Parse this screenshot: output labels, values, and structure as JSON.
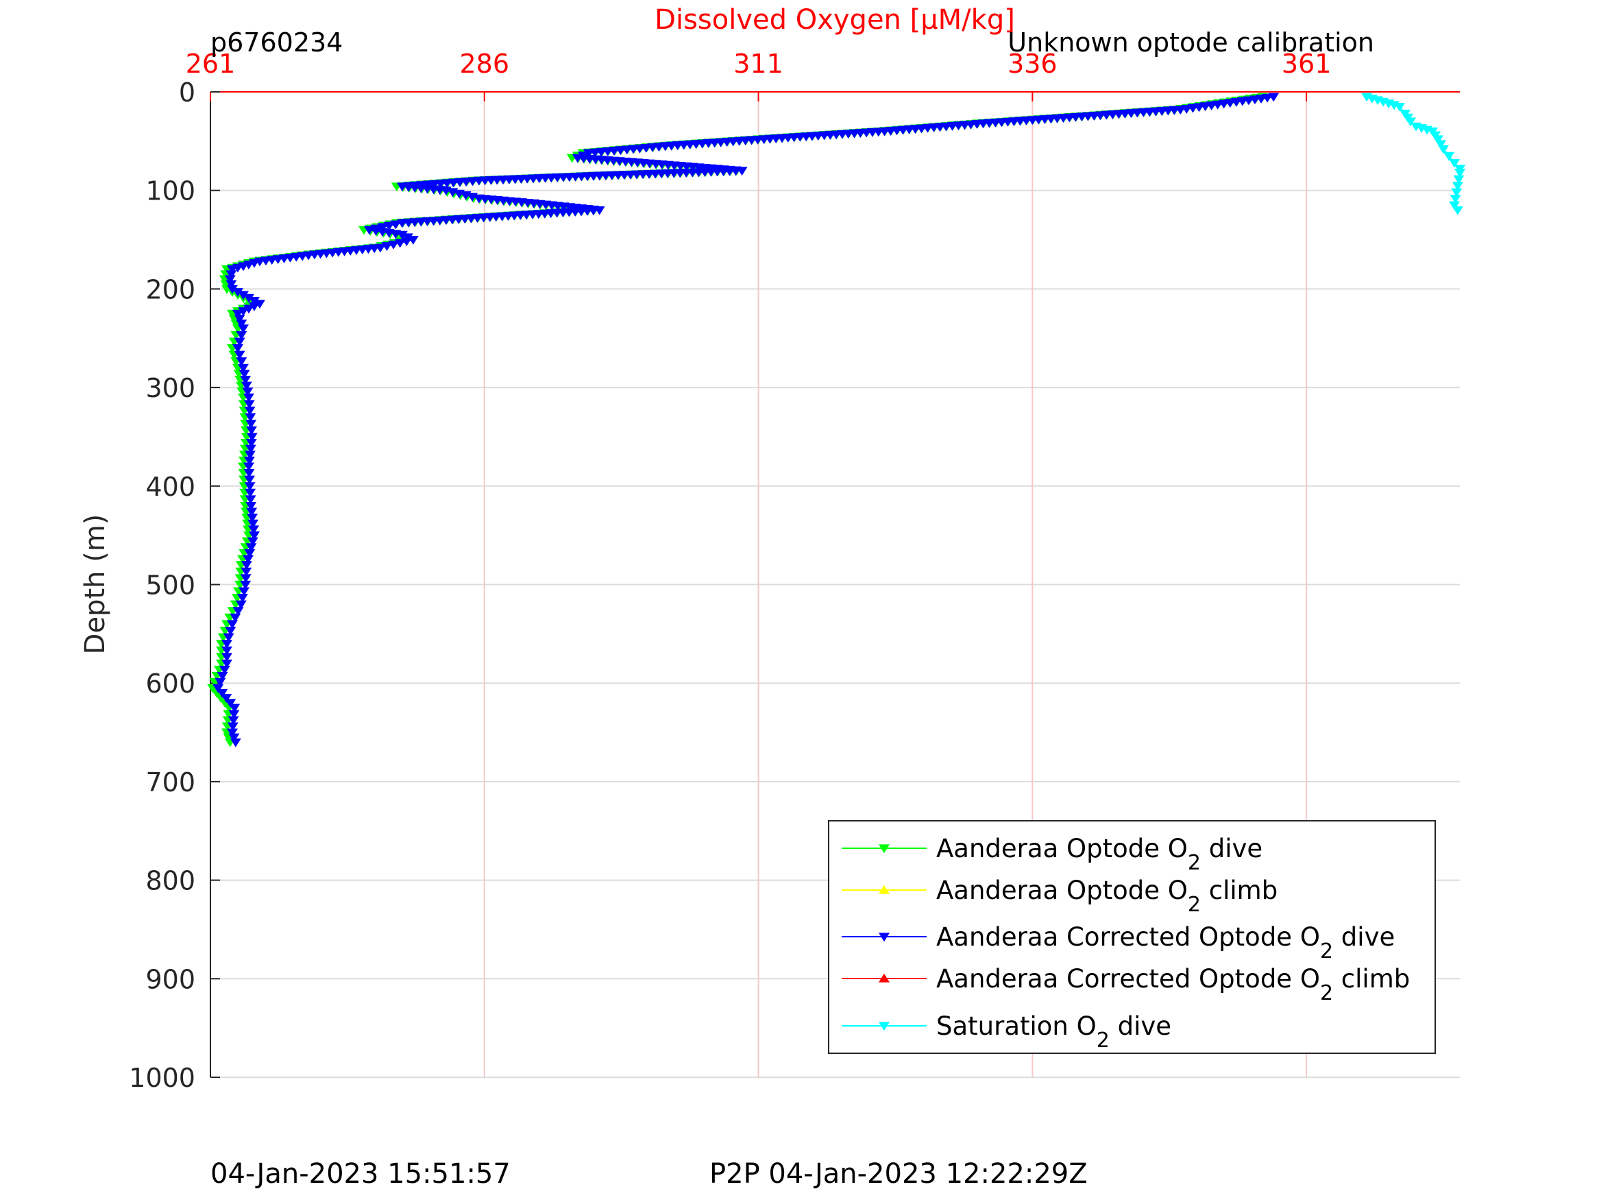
{
  "header": {
    "profile_id": "p6760234",
    "calibration_note": "Unknown optode calibration"
  },
  "footer": {
    "plot_time": "04-Jan-2023 15:51:57",
    "p2p_time": "P2P 04-Jan-2023 12:22:29Z"
  },
  "colors": {
    "axis_top": "#ff0000",
    "axis_left": "#262626",
    "grid": "#dcdcdc",
    "grid_top": "#f4c8c8",
    "optode_dive": "#00ff00",
    "optode_climb": "#ffff00",
    "corrected_dive": "#0000ff",
    "corrected_climb": "#ff0000",
    "saturation_dive": "#00ffff"
  },
  "chart_data": {
    "type": "scatter",
    "title": "Dissolved Oxygen [μM/kg]",
    "xlabel": "Dissolved Oxygen [μM/kg]",
    "ylabel": "Depth (m)",
    "xlim": [
      261,
      375
    ],
    "ylim": [
      0,
      1000
    ],
    "y_reversed": true,
    "x_axis_location": "top",
    "grid": true,
    "xticks": [
      261,
      286,
      311,
      336,
      361
    ],
    "yticks": [
      0,
      100,
      200,
      300,
      400,
      500,
      600,
      700,
      800,
      900,
      1000
    ],
    "legend_position": "bottom-right",
    "series": [
      {
        "name": "Aanderaa Optode O2 dive",
        "legend": {
          "prefix": "Aanderaa Optode O",
          "sub": "2",
          "suffix": " dive"
        },
        "color": "#00ff00",
        "marker": "triangle-down",
        "points": [
          [
            357,
            5
          ],
          [
            349,
            18
          ],
          [
            340,
            25
          ],
          [
            331,
            32
          ],
          [
            322,
            40
          ],
          [
            311,
            48
          ],
          [
            302,
            55
          ],
          [
            295,
            62
          ],
          [
            294,
            67
          ],
          [
            300,
            72
          ],
          [
            309,
            80
          ],
          [
            296,
            85
          ],
          [
            285,
            90
          ],
          [
            278,
            96
          ],
          [
            282,
            100
          ],
          [
            285,
            108
          ],
          [
            290,
            113
          ],
          [
            296,
            120
          ],
          [
            286,
            127
          ],
          [
            278,
            133
          ],
          [
            275,
            140
          ],
          [
            278,
            145
          ],
          [
            279,
            150
          ],
          [
            276,
            158
          ],
          [
            270,
            165
          ],
          [
            265,
            172
          ],
          [
            262.5,
            180
          ],
          [
            262.3,
            190
          ],
          [
            262.5,
            200
          ],
          [
            265,
            215
          ],
          [
            263,
            225
          ],
          [
            263.5,
            240
          ],
          [
            263,
            260
          ],
          [
            263.5,
            280
          ],
          [
            264,
            310
          ],
          [
            264.3,
            350
          ],
          [
            264,
            380
          ],
          [
            264.2,
            420
          ],
          [
            264.5,
            450
          ],
          [
            263.8,
            480
          ],
          [
            263.7,
            500
          ],
          [
            263.3,
            520
          ],
          [
            262.5,
            540
          ],
          [
            262,
            560
          ],
          [
            262,
            580
          ],
          [
            261.2,
            605
          ],
          [
            262.7,
            625
          ],
          [
            262.5,
            650
          ],
          [
            262.8,
            660
          ]
        ]
      },
      {
        "name": "Aanderaa Optode O2 climb",
        "legend": {
          "prefix": "Aanderaa Optode O",
          "sub": "2",
          "suffix": " climb"
        },
        "color": "#ffff00",
        "marker": "triangle-up",
        "points": []
      },
      {
        "name": "Aanderaa Corrected Optode O2 dive",
        "legend": {
          "prefix": "Aanderaa Corrected Optode O",
          "sub": "2",
          "suffix": " dive"
        },
        "color": "#0000ff",
        "marker": "triangle-down",
        "points": [
          [
            358,
            5
          ],
          [
            349.5,
            18
          ],
          [
            340.5,
            25
          ],
          [
            331.5,
            32
          ],
          [
            322.5,
            40
          ],
          [
            311.5,
            48
          ],
          [
            302.5,
            55
          ],
          [
            295.5,
            62
          ],
          [
            294.5,
            67
          ],
          [
            300.5,
            72
          ],
          [
            309.5,
            80
          ],
          [
            296.5,
            85
          ],
          [
            285.5,
            90
          ],
          [
            278.5,
            96
          ],
          [
            282.5,
            100
          ],
          [
            285.5,
            108
          ],
          [
            290.5,
            113
          ],
          [
            296.5,
            120
          ],
          [
            286.5,
            127
          ],
          [
            278.5,
            133
          ],
          [
            275.5,
            140
          ],
          [
            278.5,
            145
          ],
          [
            279.5,
            150
          ],
          [
            276.5,
            158
          ],
          [
            270.5,
            165
          ],
          [
            265.5,
            172
          ],
          [
            263,
            180
          ],
          [
            262.8,
            190
          ],
          [
            263,
            200
          ],
          [
            265.5,
            215
          ],
          [
            263.5,
            225
          ],
          [
            264,
            240
          ],
          [
            263.5,
            260
          ],
          [
            264,
            280
          ],
          [
            264.5,
            310
          ],
          [
            264.8,
            350
          ],
          [
            264.5,
            380
          ],
          [
            264.7,
            420
          ],
          [
            265,
            450
          ],
          [
            264.3,
            480
          ],
          [
            264.2,
            500
          ],
          [
            263.8,
            520
          ],
          [
            263,
            540
          ],
          [
            262.5,
            560
          ],
          [
            262.5,
            580
          ],
          [
            261.7,
            605
          ],
          [
            263.2,
            625
          ],
          [
            263,
            650
          ],
          [
            263.3,
            660
          ]
        ]
      },
      {
        "name": "Aanderaa Corrected Optode O2 climb",
        "legend": {
          "prefix": "Aanderaa Corrected Optode O",
          "sub": "2",
          "suffix": " climb"
        },
        "color": "#ff0000",
        "marker": "triangle-up",
        "points": []
      },
      {
        "name": "Saturation O2 dive",
        "legend": {
          "prefix": "Saturation O",
          "sub": "2",
          "suffix": " dive"
        },
        "color": "#00ffff",
        "marker": "triangle-down",
        "points": [
          [
            366.5,
            5
          ],
          [
            368,
            10
          ],
          [
            369.5,
            15
          ],
          [
            370,
            22
          ],
          [
            370.5,
            30
          ],
          [
            371,
            35
          ],
          [
            372.5,
            40
          ],
          [
            373,
            48
          ],
          [
            373.5,
            58
          ],
          [
            374,
            65
          ],
          [
            374.5,
            72
          ],
          [
            375,
            78
          ],
          [
            375,
            82
          ],
          [
            374.5,
            115
          ],
          [
            374.8,
            120
          ]
        ]
      }
    ]
  }
}
